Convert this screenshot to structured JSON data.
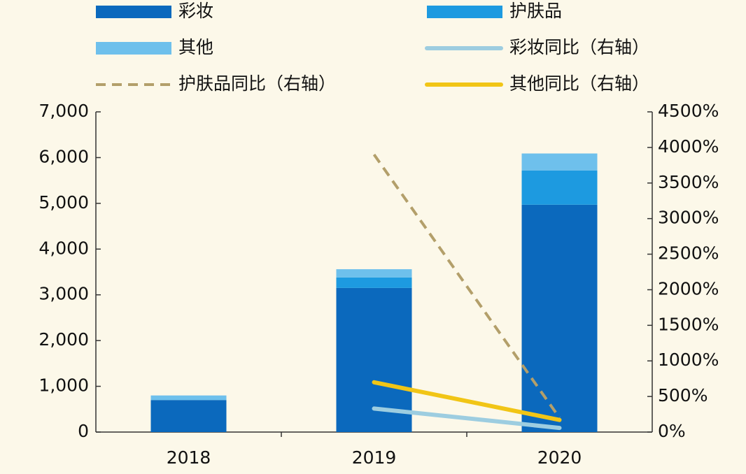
{
  "chart_data": {
    "type": "bar",
    "categories": [
      "2018",
      "2019",
      "2020"
    ],
    "series": [
      {
        "name": "彩妆",
        "color": "#0b69bd",
        "values": [
          700,
          3150,
          4970
        ]
      },
      {
        "name": "护肤品",
        "color": "#1d9ae0",
        "values": [
          0,
          230,
          750
        ]
      },
      {
        "name": "其他",
        "color": "#6ec0ec",
        "values": [
          100,
          180,
          370
        ]
      },
      {
        "name": "彩妆同比（右轴）",
        "color": "#9dcde0",
        "type": "line",
        "axis": "y2",
        "values": [
          null,
          330,
          58
        ]
      },
      {
        "name": "护肤品同比（右轴）",
        "color": "#b39f6a",
        "type": "line",
        "dash": true,
        "axis": "y2",
        "values": [
          null,
          3900,
          200
        ]
      },
      {
        "name": "其他同比（右轴）",
        "color": "#f1c516",
        "type": "line",
        "axis": "y2",
        "values": [
          null,
          700,
          170
        ]
      }
    ],
    "ylim": [
      0,
      7000
    ],
    "yticks": [
      0,
      {
        "value": 1000,
        "label": "1,000"
      },
      {
        "value": 2000,
        "label": "2,000"
      },
      {
        "value": 3000,
        "label": "3,000"
      },
      {
        "value": 4000,
        "label": "4,000"
      },
      {
        "value": 5000,
        "label": "5,000"
      },
      {
        "value": 6000,
        "label": "6,000"
      },
      {
        "value": 7000,
        "label": "7,000"
      }
    ],
    "y2lim": [
      0,
      4500
    ],
    "y2ticks": [
      {
        "value": 0,
        "label": "0%"
      },
      {
        "value": 500,
        "label": "500%"
      },
      {
        "value": 1000,
        "label": "1000%"
      },
      {
        "value": 1500,
        "label": "1500%"
      },
      {
        "value": 2000,
        "label": "2000%"
      },
      {
        "value": 2500,
        "label": "2500%"
      },
      {
        "value": 3000,
        "label": "3000%"
      },
      {
        "value": 3500,
        "label": "3500%"
      },
      {
        "value": 4000,
        "label": "4000%"
      },
      {
        "value": 4500,
        "label": "4500%"
      }
    ]
  }
}
